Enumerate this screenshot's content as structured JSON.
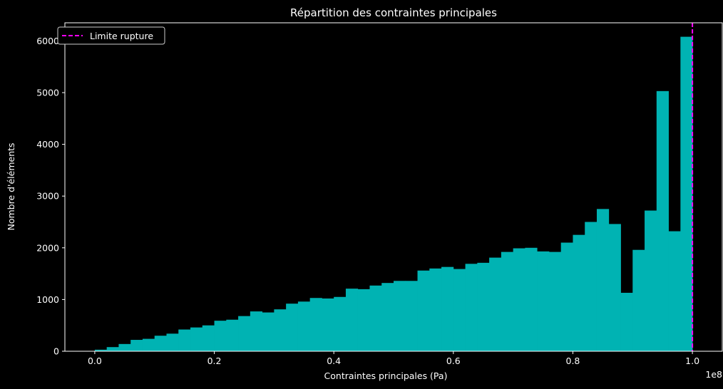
{
  "chart_data": {
    "type": "bar",
    "title": "Répartition des contraintes principales",
    "xlabel": "Contraintes principales (Pa)",
    "ylabel": "Nombre d'éléments",
    "x_offset_label": "1e8",
    "xlim": [
      -0.05,
      1.05
    ],
    "ylim": [
      0,
      6350
    ],
    "xticks": [
      0.0,
      0.2,
      0.4,
      0.6,
      0.8,
      1.0
    ],
    "xtick_labels": [
      "0.0",
      "0.2",
      "0.4",
      "0.6",
      "0.8",
      "1.0"
    ],
    "yticks": [
      0,
      1000,
      2000,
      3000,
      4000,
      5000,
      6000
    ],
    "ytick_labels": [
      "0",
      "1000",
      "2000",
      "3000",
      "4000",
      "5000",
      "6000"
    ],
    "bin_start": 0.0,
    "bin_width": 0.02,
    "values": [
      30,
      80,
      140,
      220,
      240,
      300,
      340,
      420,
      460,
      500,
      590,
      610,
      680,
      770,
      750,
      810,
      920,
      960,
      1030,
      1020,
      1050,
      1210,
      1200,
      1270,
      1320,
      1360,
      1360,
      1560,
      1600,
      1630,
      1590,
      1690,
      1710,
      1810,
      1920,
      1990,
      2000,
      1930,
      1920,
      2100,
      2250,
      2500,
      2750,
      2460,
      1130,
      1960,
      2720,
      5030,
      2320,
      6080
    ],
    "bar_color": "#00b3b3",
    "limit_line": {
      "x": 1.0,
      "label": "Limite rupture",
      "color": "#ff00ff",
      "style": "dashed"
    },
    "legend_position": "top-left",
    "grid": false
  }
}
